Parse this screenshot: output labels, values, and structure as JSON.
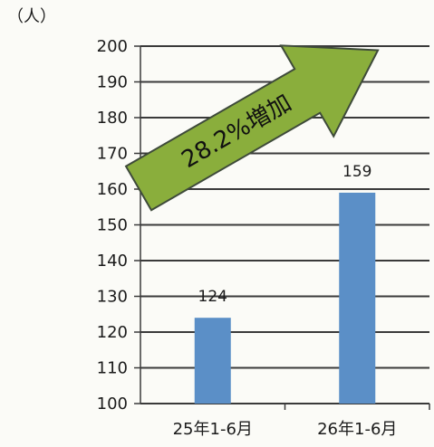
{
  "chart_data": {
    "type": "bar",
    "unit_label": "（人）",
    "categories": [
      "25年1-6月",
      "26年1-6月"
    ],
    "values": [
      124,
      159
    ],
    "data_labels": [
      "124",
      "159"
    ],
    "ylim": [
      100,
      200
    ],
    "yticks": [
      100,
      110,
      120,
      130,
      140,
      150,
      160,
      170,
      180,
      190,
      200
    ],
    "grid": true,
    "bar_color": "#5b8fc7",
    "annotation": {
      "text": "28.2%増加",
      "shape": "arrow",
      "fill": "#8aae3c",
      "stroke": "#3e4a3a"
    }
  }
}
